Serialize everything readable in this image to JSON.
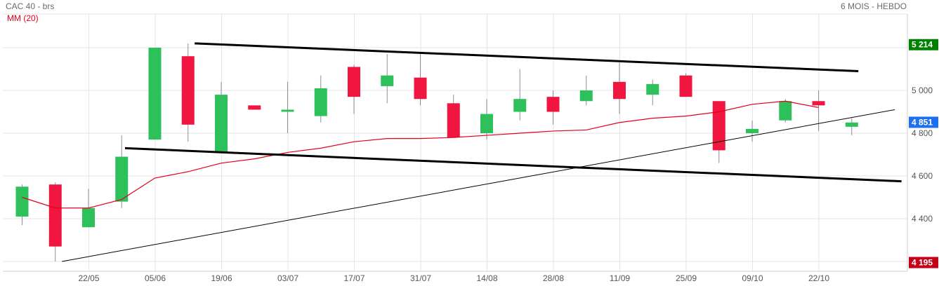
{
  "header": {
    "title": "CAC 40 - brs",
    "period": "6 MOIS - HEBDO",
    "ma_label": "MM (20)"
  },
  "chart_data": {
    "type": "candlestick",
    "title": "CAC 40 - brs",
    "subtitle": "6 MOIS - HEBDO",
    "ylim": [
      4170,
      5300
    ],
    "y_ticks": [
      4400,
      4600,
      4800,
      5000
    ],
    "y_tick_labels": [
      "4 400",
      "4 600",
      "4 800",
      "5 000"
    ],
    "grid": true,
    "x_tick_labels": [
      "22/05",
      "05/06",
      "19/06",
      "03/07",
      "17/07",
      "31/07",
      "14/08",
      "28/08",
      "11/09",
      "25/09",
      "09/10",
      "22/10"
    ],
    "colors": {
      "up": "#2ec05a",
      "down": "#f0163f",
      "ma": "#e3001b",
      "high_badge": "#008000",
      "low_badge": "#c40018",
      "last_badge": "#1e6ef0",
      "grid": "#e6e6e6",
      "trendline": "#000000"
    },
    "candles": [
      {
        "open": 4410,
        "high": 4560,
        "low": 4370,
        "close": 4550
      },
      {
        "open": 4560,
        "high": 4570,
        "low": 4200,
        "close": 4270
      },
      {
        "open": 4360,
        "high": 4540,
        "low": 4360,
        "close": 4450
      },
      {
        "open": 4480,
        "high": 4790,
        "low": 4450,
        "close": 4690
      },
      {
        "open": 4770,
        "high": 5200,
        "low": 4770,
        "close": 5200
      },
      {
        "open": 5160,
        "high": 5220,
        "low": 4760,
        "close": 4840
      },
      {
        "open": 4710,
        "high": 5040,
        "low": 4710,
        "close": 4980
      },
      {
        "open": 4930,
        "high": 4930,
        "low": 4910,
        "close": 4910
      },
      {
        "open": 4910,
        "high": 5040,
        "low": 4800,
        "close": 4910
      },
      {
        "open": 4880,
        "high": 5070,
        "low": 4850,
        "close": 5010
      },
      {
        "open": 5110,
        "high": 5120,
        "low": 4890,
        "close": 4970
      },
      {
        "open": 5020,
        "high": 5170,
        "low": 4940,
        "close": 5070
      },
      {
        "open": 5060,
        "high": 5180,
        "low": 4930,
        "close": 4960
      },
      {
        "open": 4940,
        "high": 4980,
        "low": 4780,
        "close": 4780
      },
      {
        "open": 4800,
        "high": 4960,
        "low": 4770,
        "close": 4890
      },
      {
        "open": 4900,
        "high": 5100,
        "low": 4860,
        "close": 4960
      },
      {
        "open": 4970,
        "high": 5000,
        "low": 4840,
        "close": 4900
      },
      {
        "open": 4950,
        "high": 5070,
        "low": 4930,
        "close": 5000
      },
      {
        "open": 5040,
        "high": 5130,
        "low": 4890,
        "close": 4960
      },
      {
        "open": 4980,
        "high": 5050,
        "low": 4930,
        "close": 5030
      },
      {
        "open": 5070,
        "high": 5080,
        "low": 4970,
        "close": 4970
      },
      {
        "open": 4950,
        "high": 4950,
        "low": 4660,
        "close": 4720
      },
      {
        "open": 4800,
        "high": 4860,
        "low": 4760,
        "close": 4820
      },
      {
        "open": 4860,
        "high": 4960,
        "low": 4850,
        "close": 4950
      },
      {
        "open": 4950,
        "high": 5000,
        "low": 4810,
        "close": 4930
      },
      {
        "open": 4830,
        "high": 4870,
        "low": 4790,
        "close": 4850
      }
    ],
    "moving_average": {
      "name": "MM (20)",
      "values": [
        4500,
        4450,
        4450,
        4490,
        4590,
        4620,
        4660,
        4680,
        4710,
        4730,
        4760,
        4775,
        4775,
        4780,
        4790,
        4800,
        4810,
        4815,
        4850,
        4870,
        4880,
        4900,
        4935,
        4950,
        4920
      ]
    },
    "trendlines": [
      {
        "p1": {
          "i": 5.2,
          "v": 5220
        },
        "p2": {
          "i": 25.2,
          "v": 5090
        },
        "weight": "bold"
      },
      {
        "p1": {
          "i": 3.1,
          "v": 4730
        },
        "p2": {
          "i": 26.5,
          "v": 4575
        },
        "weight": "bold"
      },
      {
        "p1": {
          "i": 1.2,
          "v": 4200
        },
        "p2": {
          "i": 26.3,
          "v": 4910
        },
        "weight": "thin"
      }
    ],
    "value_badges": [
      {
        "label": "5 214",
        "value": 5214,
        "kind": "high_badge"
      },
      {
        "label": "4 851",
        "value": 4851,
        "kind": "last_badge"
      },
      {
        "label": "4 195",
        "value": 4195,
        "kind": "low_badge"
      }
    ]
  }
}
